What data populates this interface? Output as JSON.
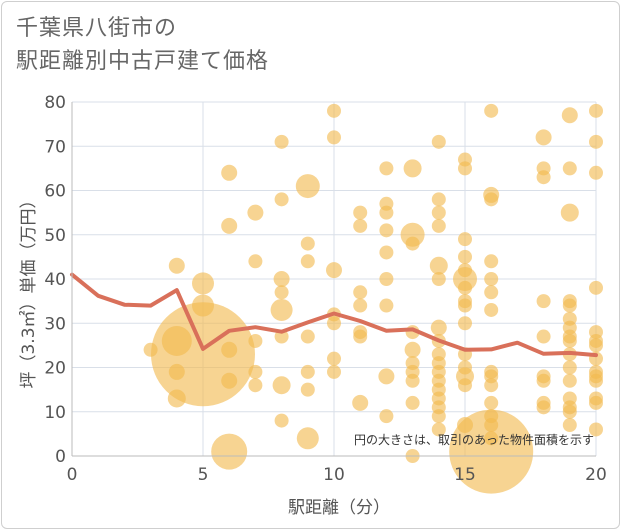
{
  "chart_data": {
    "type": "scatter",
    "title_line1": "千葉県八街市の",
    "title_line2": "駅距離別中古戸建て価格",
    "xlabel": "駅距離（分）",
    "ylabel": "坪（3.3㎡）単価（万円）",
    "xlim": [
      0,
      20
    ],
    "ylim": [
      0,
      80
    ],
    "x_ticks": [
      "0",
      "5",
      "10",
      "15",
      "20"
    ],
    "y_ticks": [
      "0",
      "10",
      "20",
      "30",
      "40",
      "50",
      "60",
      "70",
      "80"
    ],
    "note": "円の大きさは、取引のあった物件面積を示す",
    "colors": {
      "bubble": "#f2b94f",
      "line": "#d9705a",
      "grid": "#d9dfe8"
    },
    "trend_line": [
      [
        0,
        41
      ],
      [
        1,
        36.2
      ],
      [
        2,
        34.2
      ],
      [
        3,
        34
      ],
      [
        4,
        37.5
      ],
      [
        5,
        24.2
      ],
      [
        6,
        28.3
      ],
      [
        7,
        29.1
      ],
      [
        8,
        28.1
      ],
      [
        9,
        30.2
      ],
      [
        10,
        32.2
      ],
      [
        11,
        30.5
      ],
      [
        12,
        28.3
      ],
      [
        13,
        28.6
      ],
      [
        14,
        26.1
      ],
      [
        15,
        24
      ],
      [
        16,
        24.1
      ],
      [
        17,
        25.6
      ],
      [
        18,
        23.1
      ],
      [
        19,
        23.3
      ],
      [
        20,
        22.8
      ]
    ],
    "bubbles": [
      [
        5,
        23,
        52
      ],
      [
        16,
        1,
        42
      ],
      [
        6,
        1,
        18
      ],
      [
        9,
        61,
        12
      ],
      [
        13,
        50,
        12
      ],
      [
        15,
        40,
        12
      ],
      [
        4,
        26,
        15
      ],
      [
        5,
        39,
        11
      ],
      [
        5,
        34,
        11
      ],
      [
        8,
        33,
        11
      ],
      [
        9,
        4,
        11
      ],
      [
        13,
        65,
        9
      ],
      [
        19,
        55,
        9
      ],
      [
        14,
        43,
        9
      ],
      [
        6,
        64,
        8
      ],
      [
        3,
        24,
        7
      ],
      [
        4,
        43,
        8
      ],
      [
        4,
        19,
        8
      ],
      [
        4,
        13,
        9
      ],
      [
        6,
        52,
        8
      ],
      [
        6,
        24,
        8
      ],
      [
        6,
        17,
        8
      ],
      [
        7,
        55,
        8
      ],
      [
        7,
        44,
        7
      ],
      [
        7,
        26,
        7
      ],
      [
        7,
        19,
        7
      ],
      [
        7,
        16,
        7
      ],
      [
        8,
        71,
        7
      ],
      [
        8,
        58,
        7
      ],
      [
        8,
        40,
        8
      ],
      [
        8,
        37,
        7
      ],
      [
        8,
        27,
        7
      ],
      [
        8,
        16,
        9
      ],
      [
        8,
        8,
        7
      ],
      [
        9,
        48,
        7
      ],
      [
        9,
        44,
        7
      ],
      [
        9,
        27,
        7
      ],
      [
        9,
        19,
        7
      ],
      [
        9,
        15,
        7
      ],
      [
        10,
        78,
        7
      ],
      [
        10,
        72,
        7
      ],
      [
        10,
        42,
        8
      ],
      [
        10,
        32,
        7
      ],
      [
        10,
        30,
        7
      ],
      [
        10,
        22,
        7
      ],
      [
        10,
        19,
        7
      ],
      [
        11,
        55,
        7
      ],
      [
        11,
        52,
        7
      ],
      [
        11,
        37,
        7
      ],
      [
        11,
        34,
        7
      ],
      [
        11,
        28,
        7
      ],
      [
        11,
        27,
        7
      ],
      [
        11,
        12,
        8
      ],
      [
        12,
        65,
        7
      ],
      [
        12,
        57,
        7
      ],
      [
        12,
        55,
        7
      ],
      [
        12,
        51,
        7
      ],
      [
        12,
        46,
        7
      ],
      [
        12,
        40,
        7
      ],
      [
        12,
        34,
        7
      ],
      [
        12,
        18,
        8
      ],
      [
        12,
        9,
        7
      ],
      [
        13,
        48,
        7
      ],
      [
        13,
        28,
        7
      ],
      [
        13,
        24,
        8
      ],
      [
        13,
        21,
        7
      ],
      [
        13,
        19,
        7
      ],
      [
        13,
        17,
        7
      ],
      [
        13,
        12,
        7
      ],
      [
        13,
        0,
        7
      ],
      [
        14,
        71,
        7
      ],
      [
        14,
        58,
        7
      ],
      [
        14,
        55,
        7
      ],
      [
        14,
        52,
        7
      ],
      [
        14,
        40,
        7
      ],
      [
        14,
        29,
        8
      ],
      [
        14,
        26,
        7
      ],
      [
        14,
        23,
        7
      ],
      [
        14,
        21,
        7
      ],
      [
        14,
        19,
        7
      ],
      [
        14,
        17,
        7
      ],
      [
        14,
        15,
        7
      ],
      [
        14,
        13,
        7
      ],
      [
        14,
        11,
        7
      ],
      [
        14,
        9,
        7
      ],
      [
        14,
        6,
        7
      ],
      [
        15,
        67,
        7
      ],
      [
        15,
        65,
        7
      ],
      [
        15,
        49,
        7
      ],
      [
        15,
        45,
        7
      ],
      [
        15,
        42,
        7
      ],
      [
        15,
        38,
        7
      ],
      [
        15,
        35,
        7
      ],
      [
        15,
        34,
        7
      ],
      [
        15,
        30,
        7
      ],
      [
        15,
        23,
        7
      ],
      [
        15,
        20,
        7
      ],
      [
        15,
        18,
        9
      ],
      [
        15,
        16,
        7
      ],
      [
        15,
        7,
        8
      ],
      [
        16,
        78,
        7
      ],
      [
        16,
        59,
        8
      ],
      [
        16,
        58,
        7
      ],
      [
        16,
        44,
        7
      ],
      [
        16,
        40,
        7
      ],
      [
        16,
        37,
        7
      ],
      [
        16,
        33,
        7
      ],
      [
        16,
        19,
        7
      ],
      [
        16,
        18,
        7
      ],
      [
        16,
        16,
        7
      ],
      [
        16,
        12,
        7
      ],
      [
        16,
        9,
        7
      ],
      [
        16,
        7,
        7
      ],
      [
        16,
        4,
        7
      ],
      [
        18,
        72,
        8
      ],
      [
        18,
        65,
        7
      ],
      [
        18,
        63,
        7
      ],
      [
        18,
        35,
        7
      ],
      [
        18,
        27,
        7
      ],
      [
        18,
        18,
        7
      ],
      [
        18,
        17,
        7
      ],
      [
        18,
        12,
        7
      ],
      [
        18,
        11,
        7
      ],
      [
        19,
        77,
        8
      ],
      [
        19,
        65,
        7
      ],
      [
        19,
        35,
        7
      ],
      [
        19,
        34,
        7
      ],
      [
        19,
        31,
        7
      ],
      [
        19,
        29,
        7
      ],
      [
        19,
        27,
        7
      ],
      [
        19,
        26,
        7
      ],
      [
        19,
        23,
        7
      ],
      [
        19,
        20,
        7
      ],
      [
        19,
        17,
        7
      ],
      [
        19,
        13,
        7
      ],
      [
        19,
        11,
        7
      ],
      [
        19,
        10,
        7
      ],
      [
        19,
        7,
        7
      ],
      [
        20,
        78,
        7
      ],
      [
        20,
        71,
        7
      ],
      [
        20,
        64,
        7
      ],
      [
        20,
        38,
        7
      ],
      [
        20,
        28,
        7
      ],
      [
        20,
        26,
        7
      ],
      [
        20,
        25,
        7
      ],
      [
        20,
        22,
        7
      ],
      [
        20,
        19,
        7
      ],
      [
        20,
        18,
        7
      ],
      [
        20,
        17,
        7
      ],
      [
        20,
        13,
        7
      ],
      [
        20,
        12,
        7
      ],
      [
        20,
        6,
        7
      ]
    ]
  }
}
